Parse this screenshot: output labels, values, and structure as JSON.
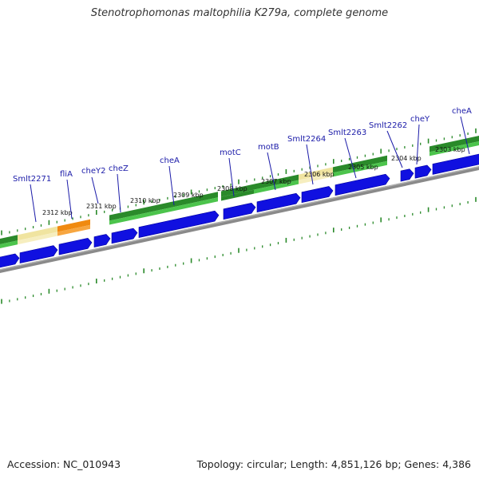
{
  "title": "Stenotrophomonas maltophilia K279a, complete genome",
  "footer": {
    "accession": "Accession: NC_010943",
    "topology": "Topology: circular; Length: 4,851,126 bp; Genes: 4,386"
  },
  "colors": {
    "label_blue": "#1a1aa8",
    "cds_blue": "#1010e0",
    "green_dark": "#2a8a2a",
    "green_light": "#4cc44c",
    "yellow": "#f0e4a0",
    "orange": "#f08a10",
    "backbone": "#8a8a8a",
    "tick_green": "#2a8a2a"
  },
  "gene_labels": [
    "Smlt2271",
    "fliA",
    "cheY2",
    "cheZ",
    "cheA",
    "motC",
    "motB",
    "Smlt2264",
    "Smlt2263",
    "Smlt2262",
    "cheY",
    "cheA"
  ],
  "kbp_labels": [
    "2312 kbp",
    "2311 kbp",
    "2310 kbp",
    "2309 kbp",
    "2308 kbp",
    "2307 kbp",
    "2306 kbp",
    "2305 kbp",
    "2304 kbp",
    "2303 kbp"
  ]
}
